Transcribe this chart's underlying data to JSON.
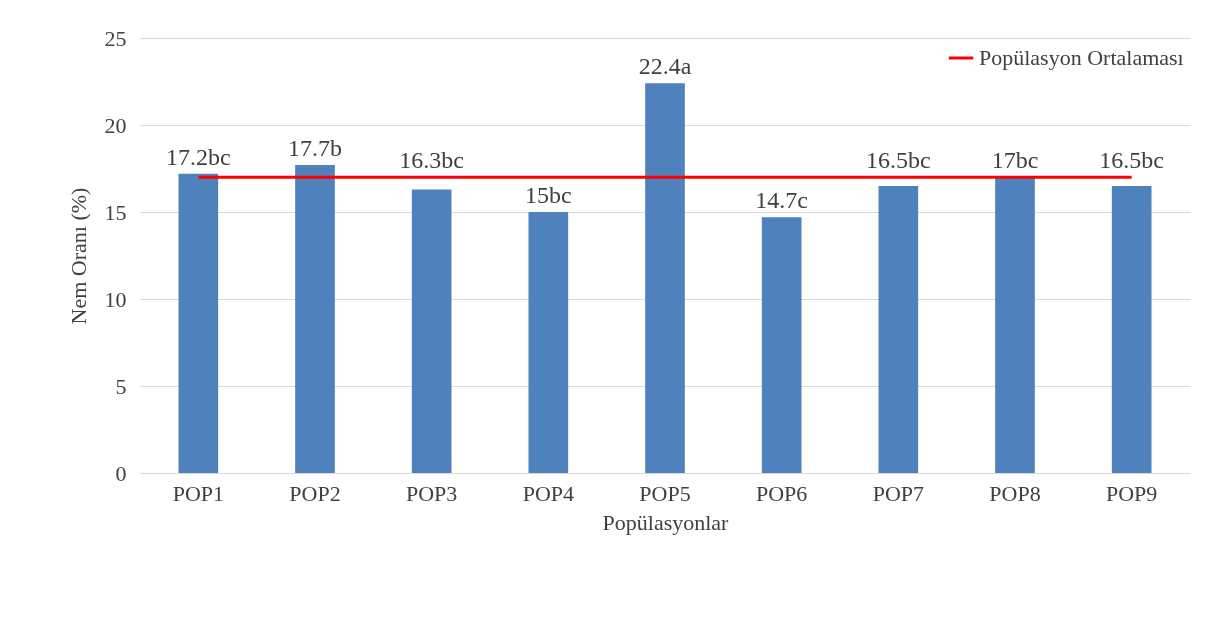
{
  "chart_data": {
    "type": "bar",
    "xlabel": "Popülasyonlar",
    "ylabel": "Nem Oranı (%)",
    "categories": [
      "POP1",
      "POP2",
      "POP3",
      "POP4",
      "POP5",
      "POP6",
      "POP7",
      "POP8",
      "POP9"
    ],
    "series": [
      {
        "color": "#4f81bd",
        "values": [
          17.2,
          17.7,
          16.3,
          15,
          22.4,
          14.7,
          16.5,
          17,
          16.5
        ],
        "value_labels": [
          "17.2bc",
          "17.7b",
          "16.3bc",
          "15bc",
          "22.4a",
          "14.7c",
          "16.5bc",
          "17bc",
          "16.5bc"
        ]
      },
      {
        "type": "line",
        "name": "Popülasyon Ortalaması",
        "color": "#ff0000",
        "values": [
          17,
          17,
          17,
          17,
          17,
          17,
          17,
          17,
          17
        ]
      }
    ],
    "ylim": [
      0,
      25
    ],
    "yticks": [
      0,
      5,
      10,
      15,
      20,
      25
    ],
    "grid": "y",
    "legend": "top right"
  }
}
